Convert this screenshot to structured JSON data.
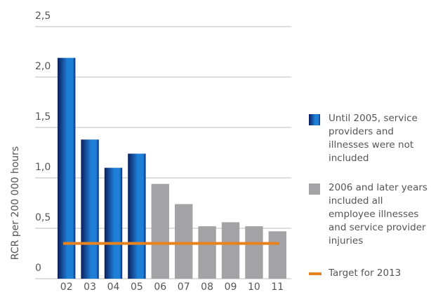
{
  "chart_data": {
    "type": "bar",
    "y_label": "RCR per 200 000 hours",
    "categories": [
      "02",
      "03",
      "04",
      "05",
      "06",
      "07",
      "08",
      "09",
      "10",
      "11"
    ],
    "series": [
      {
        "name": "Until 2005, service providers and illnesses were not included",
        "color": "#1e7fd6",
        "values": [
          2.19,
          1.38,
          1.1,
          1.24,
          null,
          null,
          null,
          null,
          null,
          null
        ]
      },
      {
        "name": "2006 and later years included all employee illnesses and service provider injuries",
        "color": "#a3a3a6",
        "values": [
          null,
          null,
          null,
          null,
          0.94,
          0.74,
          0.52,
          0.56,
          0.52,
          0.47
        ]
      }
    ],
    "target": {
      "name": "Target for 2013",
      "value": 0.35,
      "color": "#e8821e"
    },
    "ylim": [
      0,
      2.5
    ],
    "yticks": [
      0,
      {
        "value": 0.5,
        "label": "0,5"
      },
      {
        "value": 1.0,
        "label": "1,0"
      },
      {
        "value": 1.5,
        "label": "1,5"
      },
      {
        "value": 2.0,
        "label": "2,0"
      },
      {
        "value": 2.5,
        "label": "2,5"
      }
    ],
    "grid": true
  }
}
